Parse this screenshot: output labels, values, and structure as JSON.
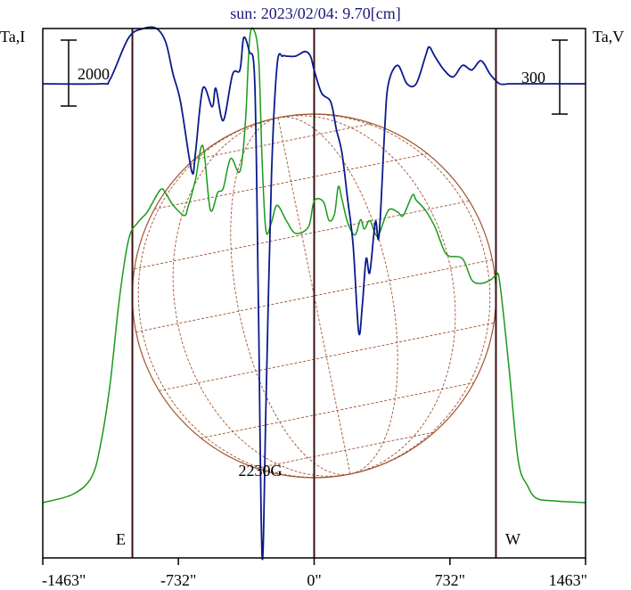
{
  "chart_data": {
    "type": "line",
    "title": "sun: 2023/02/04: 9.70[cm]",
    "left_axis_label": "Ta,I",
    "right_axis_label": "Ta,V",
    "left_scale_bar": "2000",
    "right_scale_bar": "300",
    "x_unit": "arcsec",
    "x_range": [
      -1463,
      1463
    ],
    "x_ticks": [
      "-1463\"",
      "-732\"",
      "0\"",
      "732\"",
      "1463\""
    ],
    "east_label": "E",
    "west_label": "W",
    "annotation": "2230G",
    "annotation_x": -300,
    "solar_limb_x": [
      -980,
      980
    ],
    "i_range": [
      -650,
      5580
    ],
    "v_range": [
      -1030,
      120
    ],
    "grid": false,
    "colors": {
      "stokes_i": "#1a9a1a",
      "stokes_v": "#0b1a8c",
      "solar_disk": "#a0522d",
      "vertical_lines": "#3a1212"
    },
    "series": [
      {
        "key": "stokes_i",
        "x": [
          -1463,
          -1300,
          -1200,
          -1150,
          -1100,
          -1050,
          -1000,
          -950,
          -900,
          -830,
          -800,
          -760,
          -700,
          -680,
          -640,
          -600,
          -560,
          -520,
          -490,
          -450,
          -400,
          -370,
          -350,
          -330,
          -300,
          -280,
          -260,
          -230,
          -200,
          -150,
          -100,
          -30,
          0,
          50,
          80,
          110,
          130,
          150,
          180,
          220,
          250,
          270,
          300,
          330,
          350,
          400,
          450,
          480,
          530,
          550,
          600,
          650,
          700,
          730,
          800,
          850,
          900,
          950,
          980,
          1000,
          1050,
          1100,
          1150,
          1200,
          1300,
          1463
        ],
        "values": [
          0,
          100,
          300,
          700,
          1400,
          2400,
          3100,
          3300,
          3420,
          3680,
          3640,
          3500,
          3380,
          3480,
          3800,
          4200,
          3450,
          3650,
          3700,
          4050,
          3900,
          4500,
          5400,
          5580,
          5250,
          4000,
          3200,
          3300,
          3500,
          3320,
          3170,
          3250,
          3550,
          3540,
          3320,
          3400,
          3720,
          3570,
          3300,
          3150,
          3330,
          3220,
          3320,
          3160,
          3160,
          3440,
          3420,
          3380,
          3620,
          3560,
          3440,
          3250,
          2970,
          2900,
          2870,
          2620,
          2580,
          2620,
          2670,
          2600,
          1600,
          500,
          200,
          50,
          20,
          0
        ]
      },
      {
        "key": "stokes_v",
        "x": [
          -1463,
          -1150,
          -1100,
          -1000,
          -920,
          -850,
          -800,
          -760,
          -720,
          -660,
          -640,
          -600,
          -550,
          -530,
          -490,
          -440,
          -400,
          -380,
          -350,
          -320,
          -300,
          -280,
          -260,
          -230,
          -200,
          -170,
          -150,
          -100,
          -50,
          -20,
          0,
          40,
          90,
          120,
          150,
          180,
          210,
          240,
          260,
          280,
          300,
          330,
          350,
          380,
          400,
          450,
          500,
          550,
          600,
          620,
          650,
          700,
          750,
          800,
          850,
          900,
          950,
          1000,
          1050,
          1100,
          1463
        ],
        "values": [
          0,
          0,
          10,
          100,
          120,
          120,
          90,
          20,
          -40,
          -190,
          -150,
          -10,
          -50,
          -10,
          -80,
          20,
          30,
          100,
          70,
          0,
          -500,
          -1030,
          -700,
          -200,
          40,
          60,
          60,
          60,
          70,
          60,
          30,
          -20,
          -40,
          -100,
          -150,
          -250,
          -350,
          -540,
          -480,
          -380,
          -410,
          -300,
          -330,
          -100,
          0,
          40,
          0,
          0,
          60,
          80,
          60,
          30,
          15,
          40,
          30,
          50,
          20,
          0,
          0,
          0,
          0
        ]
      }
    ]
  }
}
